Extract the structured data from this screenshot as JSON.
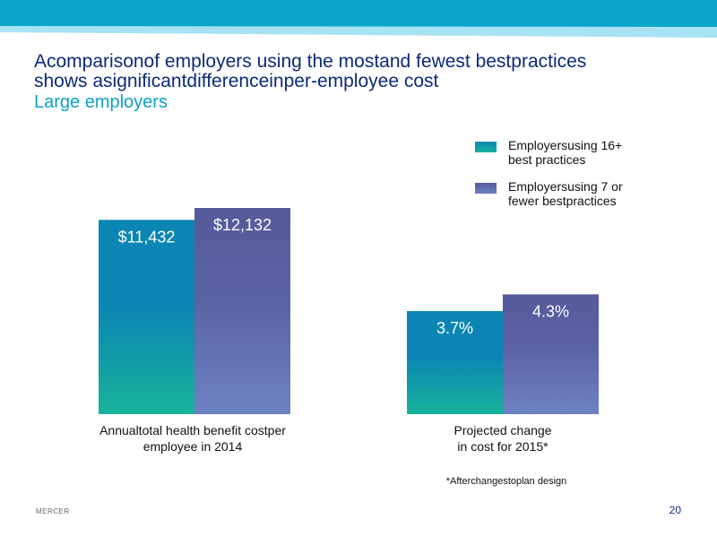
{
  "slide": {
    "title_line1": "Acomparisonof employers using the mostand fewest bestpractices",
    "title_line2": "shows asignificantdifferenceinper-employee  cost",
    "subtitle": "Large employers",
    "footnote": "*Afterchangestoplan design",
    "brand": "MERCER",
    "page_number": "20"
  },
  "legend": [
    {
      "line1": "Employersusing 16+",
      "line2": "best practices",
      "color_top": "#0b86b4",
      "color_bottom": "#17b39a"
    },
    {
      "line1": "Employersusing 7 or",
      "line2": "fewer bestpractices",
      "color_top": "#555a9a",
      "color_bottom": "#6e82c4"
    }
  ],
  "chart_data": [
    {
      "type": "bar",
      "categories": [
        "Annualtotal health benefit costper employee in 2014"
      ],
      "category_lines": [
        [
          "Annualtotal health benefit costper",
          "employee in 2014"
        ]
      ],
      "series": [
        {
          "name": "Employersusing 16+ best practices",
          "values": [
            11432
          ],
          "labels": [
            "$11,432"
          ]
        },
        {
          "name": "Employersusing 7 or fewer bestpractices",
          "values": [
            12132
          ],
          "labels": [
            "$12,132"
          ]
        }
      ],
      "ylim": [
        0,
        12132
      ]
    },
    {
      "type": "bar",
      "categories": [
        "Projected change in cost for 2015*"
      ],
      "category_lines": [
        [
          "Projected change",
          "in cost for 2015*"
        ]
      ],
      "series": [
        {
          "name": "Employersusing 16+ best practices",
          "values": [
            3.7
          ],
          "labels": [
            "3.7%"
          ]
        },
        {
          "name": "Employersusing 7 or fewer bestpractices",
          "values": [
            4.3
          ],
          "labels": [
            "4.3%"
          ]
        }
      ],
      "ylim": [
        0,
        6.5
      ]
    }
  ],
  "colors": {
    "title": "#0b2a78",
    "subtitle": "#0aa3c8",
    "bar_label": "#ffffff",
    "header_band_dark": "#0aa6c9",
    "header_band_light": "#9fdff0"
  }
}
